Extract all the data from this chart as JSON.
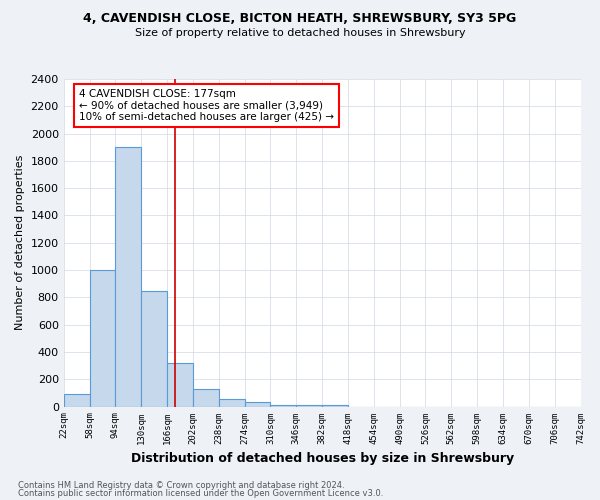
{
  "title_line1": "4, CAVENDISH CLOSE, BICTON HEATH, SHREWSBURY, SY3 5PG",
  "title_line2": "Size of property relative to detached houses in Shrewsbury",
  "xlabel": "Distribution of detached houses by size in Shrewsbury",
  "ylabel": "Number of detached properties",
  "bin_edges": [
    22,
    58,
    94,
    130,
    166,
    202,
    238,
    274,
    310,
    346,
    382,
    418,
    454,
    490,
    526,
    562,
    598,
    634,
    670,
    706,
    742
  ],
  "bar_heights": [
    90,
    1000,
    1900,
    850,
    320,
    125,
    55,
    35,
    15,
    10,
    15,
    0,
    0,
    0,
    0,
    0,
    0,
    0,
    0,
    0
  ],
  "bar_color": "#c5d8ec",
  "bar_edge_color": "#5b9bd5",
  "red_line_x": 177,
  "red_line_color": "#cc0000",
  "annotation_line1": "4 CAVENDISH CLOSE: 177sqm",
  "annotation_line2": "← 90% of detached houses are smaller (3,949)",
  "annotation_line3": "10% of semi-detached houses are larger (425) →",
  "ylim": [
    0,
    2400
  ],
  "yticks": [
    0,
    200,
    400,
    600,
    800,
    1000,
    1200,
    1400,
    1600,
    1800,
    2000,
    2200,
    2400
  ],
  "footnote1": "Contains HM Land Registry data © Crown copyright and database right 2024.",
  "footnote2": "Contains public sector information licensed under the Open Government Licence v3.0.",
  "bg_color": "#eef2f7",
  "plot_bg_color": "#ffffff"
}
